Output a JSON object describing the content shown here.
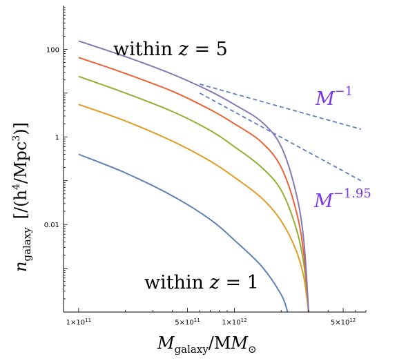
{
  "chart_data": {
    "type": "line",
    "x_scale": "log",
    "y_scale": "log",
    "xlim": [
      80000000000,
      7000000000000
    ],
    "ylim": [
      0.0001,
      1000
    ],
    "x_ticks": [
      {
        "value": 100000000000,
        "label": "1×10",
        "exp": "11"
      },
      {
        "value": 500000000000,
        "label": "5×10",
        "exp": "11"
      },
      {
        "value": 1000000000000,
        "label": "1×10",
        "exp": "12"
      },
      {
        "value": 5000000000000,
        "label": "5×10",
        "exp": "12"
      }
    ],
    "y_ticks": [
      {
        "value": 100,
        "label": "100"
      },
      {
        "value": 1,
        "label": "1"
      },
      {
        "value": 0.01,
        "label": "0.01"
      }
    ],
    "xlabel": {
      "base": "M",
      "sub": "galaxy",
      "suffix": "/M",
      "sub2": "⊙"
    },
    "ylabel": {
      "base": "n",
      "sub": "galaxy",
      "unit_open": "[/(h",
      "unit_exp1": "4",
      "unit_mid": "/Mpc",
      "unit_exp2": "3",
      "unit_close": ")]"
    },
    "series": [
      {
        "color": "#5e81b5",
        "x": [
          100000000000,
          200000000000,
          400000000000,
          700000000000,
          1000000000000,
          1500000000000,
          2000000000000,
          2200000000000
        ],
        "y": [
          0.4,
          0.15,
          0.045,
          0.013,
          0.0044,
          0.0011,
          0.00025,
          0.0001
        ]
      },
      {
        "color": "#e19c24",
        "x": [
          100000000000,
          200000000000,
          400000000000,
          700000000000,
          1000000000000,
          1500000000000,
          2000000000000,
          2500000000000,
          2800000000000,
          3000000000000
        ],
        "y": [
          5.5,
          2.3,
          0.8,
          0.28,
          0.12,
          0.04,
          0.012,
          0.0025,
          0.0006,
          0.0001
        ]
      },
      {
        "color": "#8fb032",
        "x": [
          100000000000,
          200000000000,
          400000000000,
          700000000000,
          1000000000000,
          1500000000000,
          2000000000000,
          2500000000000,
          2800000000000,
          3000000000000
        ],
        "y": [
          24,
          10,
          3.8,
          1.4,
          0.6,
          0.2,
          0.06,
          0.008,
          0.0012,
          0.0001
        ]
      },
      {
        "color": "#eb6235",
        "x": [
          100000000000,
          200000000000,
          400000000000,
          700000000000,
          1000000000000,
          1500000000000,
          2000000000000,
          2500000000000,
          2800000000000,
          3000000000000
        ],
        "y": [
          65,
          28,
          11,
          4.2,
          2.0,
          0.75,
          0.2,
          0.02,
          0.002,
          0.0001
        ]
      },
      {
        "color": "#8778b3",
        "x": [
          100000000000,
          200000000000,
          400000000000,
          700000000000,
          1000000000000,
          1500000000000,
          2000000000000,
          2500000000000,
          2800000000000,
          3000000000000
        ],
        "y": [
          155,
          68,
          27,
          11,
          5.5,
          2.2,
          0.6,
          0.05,
          0.004,
          0.0001
        ]
      }
    ],
    "reference_lines": [
      {
        "label_base": "M",
        "label_exp": "−1",
        "color": "#5b7ec0",
        "x": [
          600000000000,
          6500000000000
        ],
        "y": [
          16,
          1.5
        ]
      },
      {
        "label_base": "M",
        "label_exp": "−1.95",
        "color": "#5b7ec0",
        "x": [
          600000000000,
          6500000000000
        ],
        "y": [
          10,
          0.1
        ]
      }
    ],
    "annotations": [
      {
        "text": "within",
        "var": "z",
        "op": "= 5"
      },
      {
        "text": "within",
        "var": "z",
        "op": "= 1"
      }
    ]
  }
}
